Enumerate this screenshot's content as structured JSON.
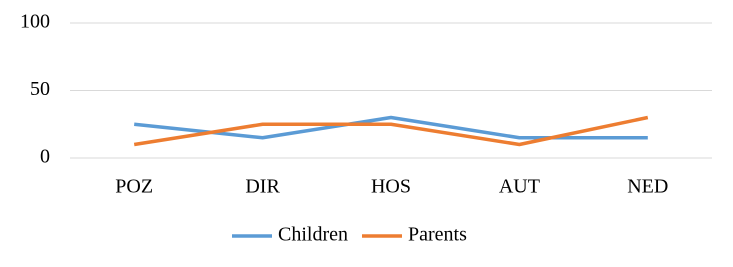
{
  "chart_data": {
    "type": "line",
    "categories": [
      "POZ",
      "DIR",
      "HOS",
      "AUT",
      "NED"
    ],
    "series": [
      {
        "name": "Children",
        "color": "#5b9bd5",
        "values": [
          25,
          15,
          30,
          15,
          15
        ]
      },
      {
        "name": "Parents",
        "color": "#ed7d31",
        "values": [
          10,
          25,
          25,
          10,
          30
        ]
      }
    ],
    "ylim": [
      0,
      100
    ],
    "yticks": [
      0,
      50,
      100
    ],
    "grid": true,
    "legend": "bottom"
  }
}
